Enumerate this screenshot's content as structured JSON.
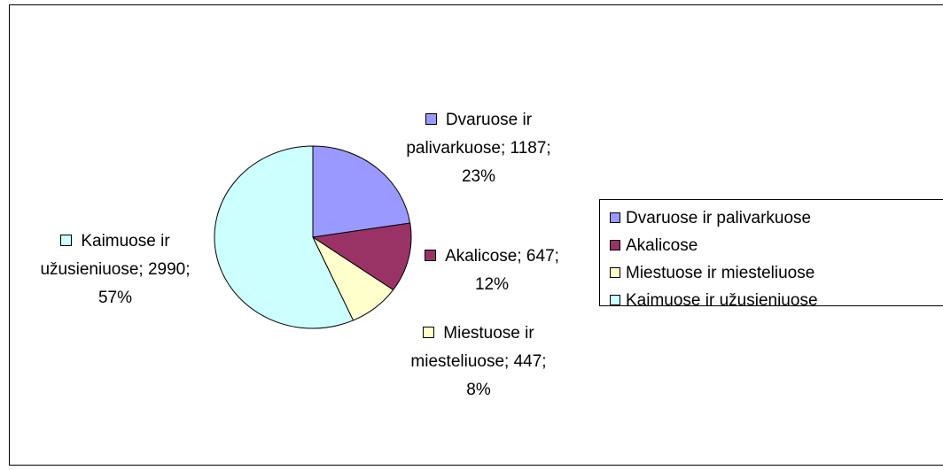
{
  "chart_data": {
    "type": "pie",
    "categories": [
      "Dvaruose ir palivarkuose",
      "Akalicose",
      "Miestuose ir miesteliuose",
      "Kaimuose ir užusieniuose"
    ],
    "values": [
      1187,
      647,
      447,
      2990
    ],
    "value_labels": [
      "Dvaruose ir palivarkuose; 1187; 23%",
      "Akalicose; 647; 12%",
      "Miestuose ir miesteliuose; 447; 8%",
      "Kaimuose ir užusieniuose; 2990; 57%"
    ],
    "colors": [
      "#9999ff",
      "#993366",
      "#ffffcc",
      "#ccffff"
    ],
    "legend": "right"
  }
}
